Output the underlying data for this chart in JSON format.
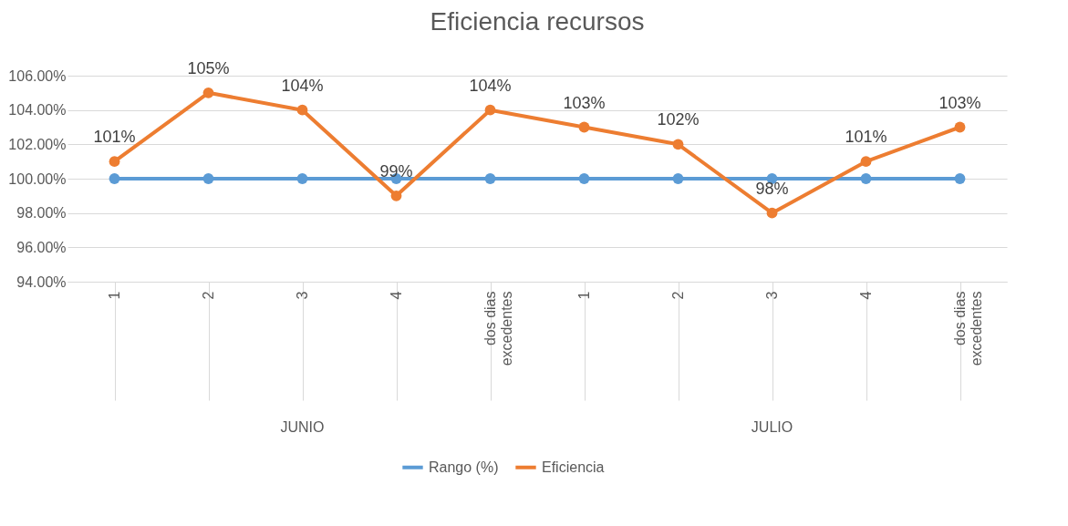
{
  "chart_data": {
    "type": "line",
    "title": "Eficiencia recursos",
    "categories": [
      "1",
      "2",
      "3",
      "4",
      "dos dias excedentes",
      "1",
      "2",
      "3",
      "4",
      "dos dias excedentes"
    ],
    "series": [
      {
        "name": "Rango (%)",
        "color": "#5b9bd5",
        "values": [
          100,
          100,
          100,
          100,
          100,
          100,
          100,
          100,
          100,
          100
        ]
      },
      {
        "name": "Eficiencia",
        "color": "#ed7d31",
        "values": [
          101,
          105,
          104,
          99,
          104,
          103,
          102,
          98,
          101,
          103
        ],
        "value_labels": [
          "101%",
          "105%",
          "104%",
          "99%",
          "104%",
          "103%",
          "102%",
          "98%",
          "101%",
          "103%"
        ]
      }
    ],
    "ylim": [
      94,
      106
    ],
    "yticks": [
      {
        "value": 94,
        "label": "94.00%"
      },
      {
        "value": 96,
        "label": "96.00%"
      },
      {
        "value": 98,
        "label": "98.00%"
      },
      {
        "value": 100,
        "label": "100.00%"
      },
      {
        "value": 102,
        "label": "102.00%"
      },
      {
        "value": 104,
        "label": "104.00%"
      },
      {
        "value": 106,
        "label": "106.00%"
      }
    ],
    "annotations": [
      "JUNIO",
      "JULIO"
    ],
    "grid": "y",
    "legend": "bottom",
    "marker": "circle",
    "line_style": "solid"
  }
}
